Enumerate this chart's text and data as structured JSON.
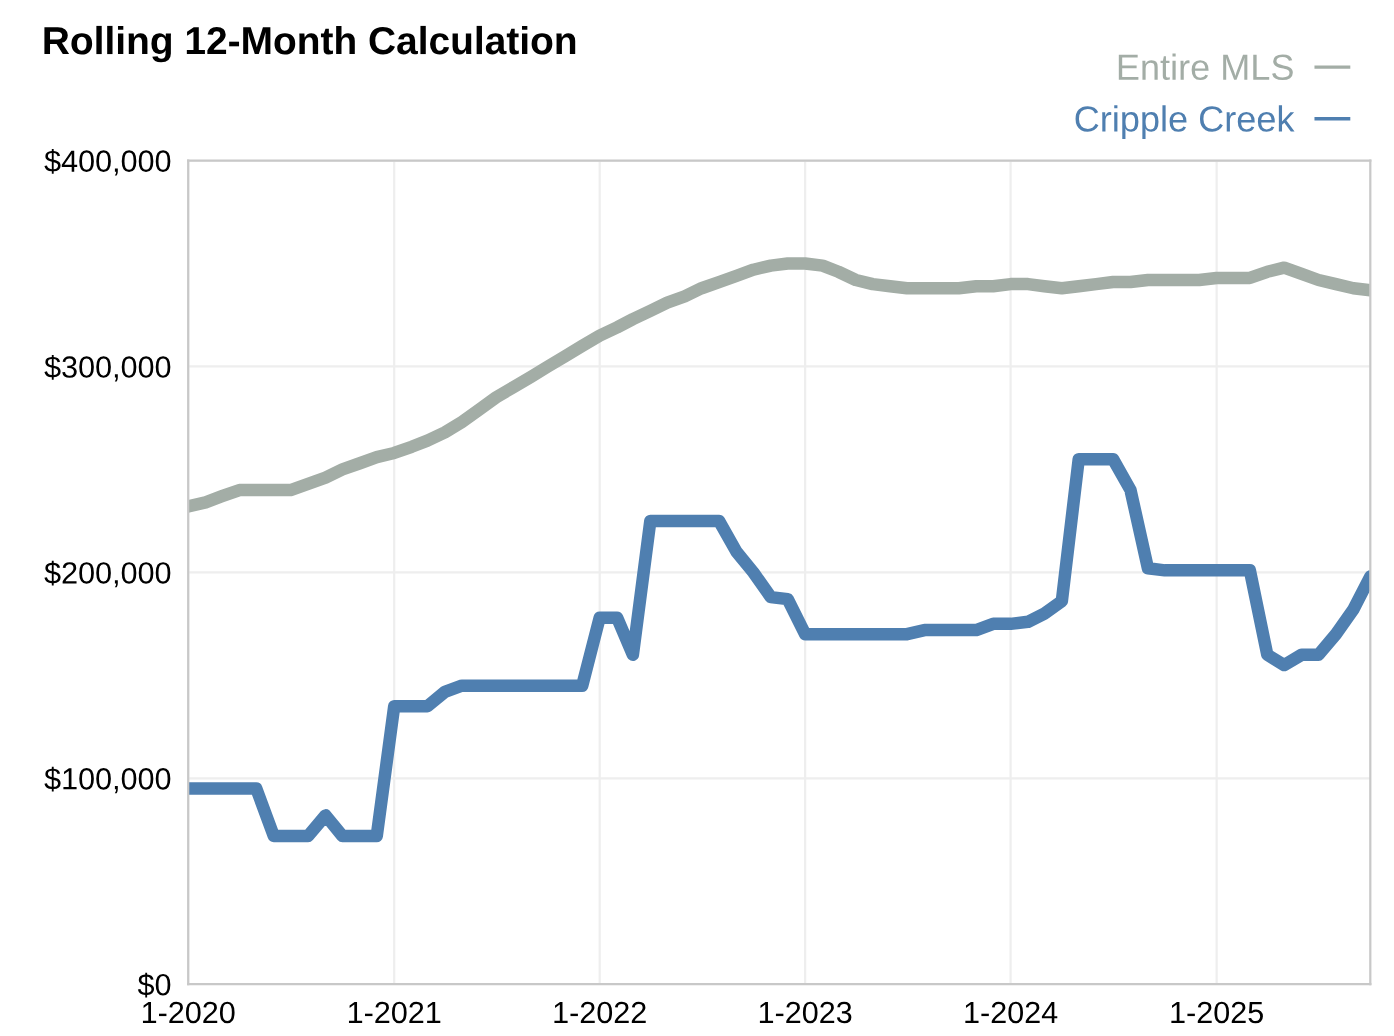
{
  "chart_data": {
    "type": "line",
    "title": "Rolling 12-Month Calculation",
    "x": [
      "2020-01",
      "2020-02",
      "2020-03",
      "2020-04",
      "2020-05",
      "2020-06",
      "2020-07",
      "2020-08",
      "2020-09",
      "2020-10",
      "2020-11",
      "2020-12",
      "2021-01",
      "2021-02",
      "2021-03",
      "2021-04",
      "2021-05",
      "2021-06",
      "2021-07",
      "2021-08",
      "2021-09",
      "2021-10",
      "2021-11",
      "2021-12",
      "2022-01",
      "2022-02",
      "2022-03",
      "2022-04",
      "2022-05",
      "2022-06",
      "2022-07",
      "2022-08",
      "2022-09",
      "2022-10",
      "2022-11",
      "2022-12",
      "2023-01",
      "2023-02",
      "2023-03",
      "2023-04",
      "2023-05",
      "2023-06",
      "2023-07",
      "2023-08",
      "2023-09",
      "2023-10",
      "2023-11",
      "2023-12",
      "2024-01",
      "2024-02",
      "2024-03",
      "2024-04",
      "2024-05",
      "2024-06",
      "2024-07",
      "2024-08",
      "2024-09",
      "2024-10",
      "2024-11",
      "2024-12",
      "2025-01",
      "2025-02",
      "2025-03",
      "2025-04",
      "2025-05",
      "2025-06",
      "2025-07",
      "2025-08",
      "2025-09",
      "2025-10"
    ],
    "series": [
      {
        "name": "Entire MLS",
        "color": "#a3ada6",
        "values": [
          232000,
          234000,
          237000,
          240000,
          240000,
          240000,
          240000,
          243000,
          246000,
          250000,
          253000,
          256000,
          258000,
          261000,
          264000,
          268000,
          273000,
          279000,
          285000,
          290000,
          295000,
          300000,
          305000,
          310000,
          315000,
          319000,
          323000,
          327000,
          331000,
          334000,
          338000,
          341000,
          344000,
          347000,
          349000,
          350000,
          350000,
          349000,
          346000,
          342000,
          340000,
          339000,
          338000,
          338000,
          338000,
          338000,
          339000,
          339000,
          340000,
          340000,
          339000,
          338000,
          339000,
          340000,
          341000,
          341000,
          342000,
          342000,
          342000,
          342000,
          343000,
          343000,
          343000,
          346000,
          348000,
          345000,
          342000,
          340000,
          338000,
          337000
        ]
      },
      {
        "name": "Cripple Creek",
        "color": "#4f7fb0",
        "values": [
          95000,
          95000,
          95000,
          95000,
          95000,
          72000,
          72000,
          72000,
          82000,
          72000,
          72000,
          72000,
          135000,
          135000,
          135000,
          142000,
          145000,
          145000,
          145000,
          145000,
          145000,
          145000,
          145000,
          145000,
          178000,
          178000,
          160000,
          225000,
          225000,
          225000,
          225000,
          225000,
          210000,
          200000,
          188000,
          187000,
          170000,
          170000,
          170000,
          170000,
          170000,
          170000,
          170000,
          172000,
          172000,
          172000,
          172000,
          175000,
          175000,
          176000,
          180000,
          186000,
          255000,
          255000,
          255000,
          240000,
          202000,
          201000,
          201000,
          201000,
          201000,
          201000,
          201000,
          160000,
          155000,
          160000,
          160000,
          170000,
          182000,
          198000
        ]
      }
    ],
    "xlim": [
      "2020-01",
      "2025-10"
    ],
    "xticks": [
      {
        "value": "2020-01",
        "label": "1-2020"
      },
      {
        "value": "2021-01",
        "label": "1-2021"
      },
      {
        "value": "2022-01",
        "label": "1-2022"
      },
      {
        "value": "2023-01",
        "label": "1-2023"
      },
      {
        "value": "2024-01",
        "label": "1-2024"
      },
      {
        "value": "2025-01",
        "label": "1-2025"
      }
    ],
    "ylim": [
      0,
      400000
    ],
    "yticks": [
      {
        "value": 0,
        "label": "$0"
      },
      {
        "value": 100000,
        "label": "$100,000"
      },
      {
        "value": 200000,
        "label": "$200,000"
      },
      {
        "value": 300000,
        "label": "$300,000"
      },
      {
        "value": 400000,
        "label": "$400,000"
      }
    ],
    "grid": true,
    "legend": "top right",
    "marker": "none",
    "line_style": "solid"
  }
}
